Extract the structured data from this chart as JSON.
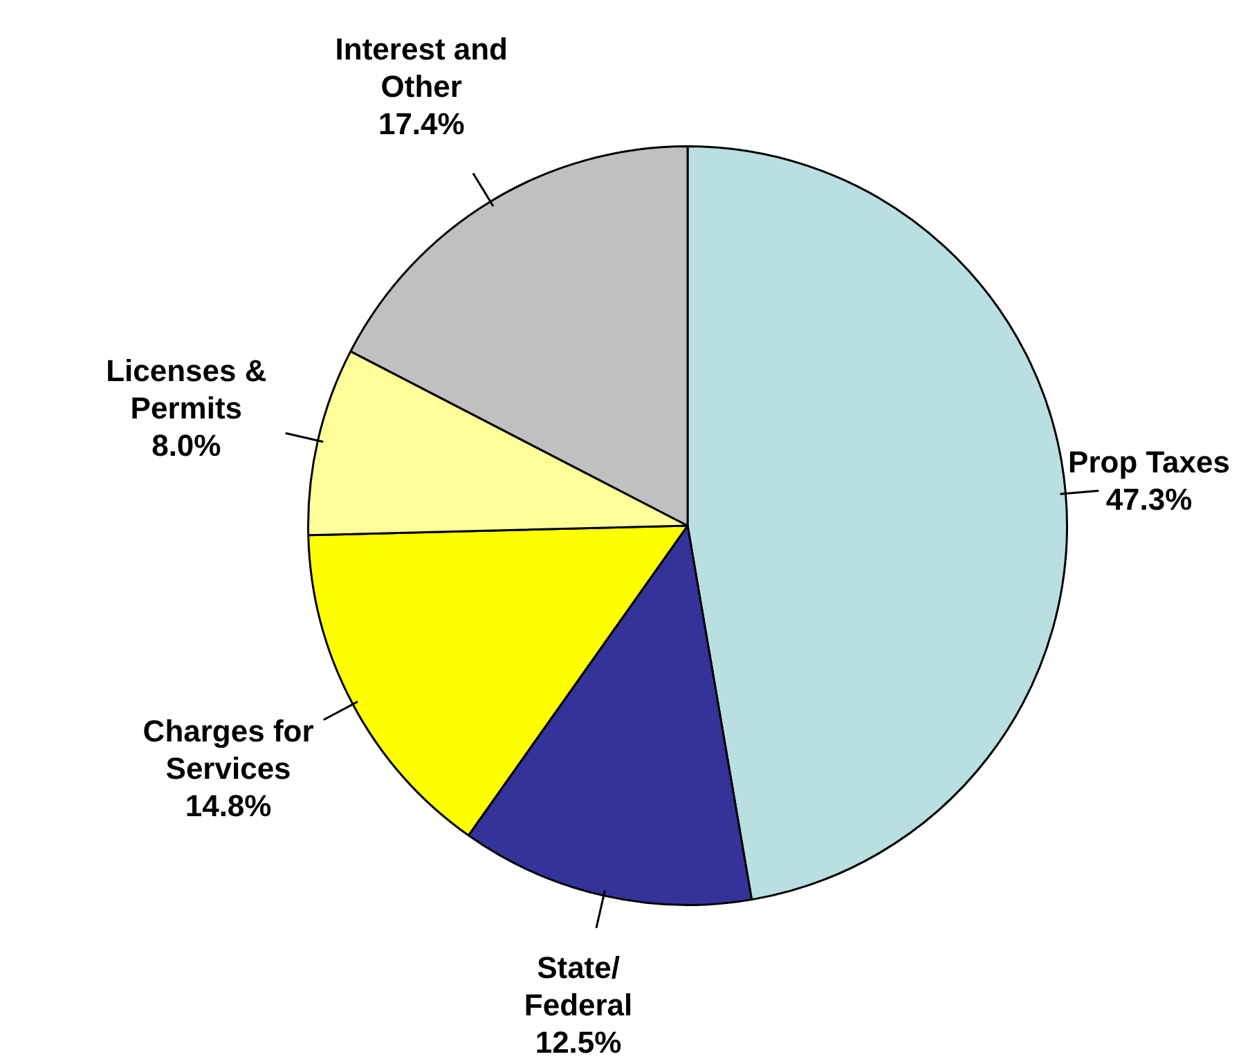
{
  "chart_data": {
    "type": "pie",
    "categories": [
      "Prop Taxes",
      "State/Federal",
      "Charges for Services",
      "Licenses & Permits",
      "Interest and Other"
    ],
    "values": [
      47.3,
      12.5,
      14.8,
      8.0,
      17.4
    ],
    "value_labels": [
      "47.3%",
      "12.5%",
      "14.8%",
      "8.0%",
      "17.4%"
    ],
    "colors": [
      "#b9dfe0",
      "#333399",
      "#ffff00",
      "#ffff99",
      "#c0c0c0"
    ],
    "legend": false
  }
}
